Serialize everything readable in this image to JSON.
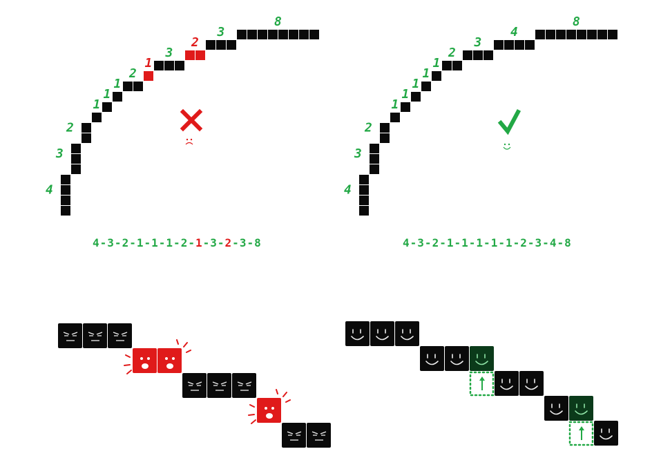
{
  "colors": {
    "good": "#22a845",
    "bad": "#e01a1a",
    "block": "#0a0a0a",
    "good_block": "#0b3a1a",
    "face_line": "#eeeeee"
  },
  "panels": {
    "left": {
      "result_icon": "cross-icon",
      "face_icon": "frown-icon",
      "segment_labels": [
        "4",
        "3",
        "2",
        "1",
        "1",
        "1",
        "2",
        "1",
        "3",
        "2",
        "3",
        "8"
      ],
      "segment_status": [
        "ok",
        "ok",
        "ok",
        "ok",
        "ok",
        "ok",
        "ok",
        "bad",
        "ok",
        "bad",
        "ok",
        "ok"
      ],
      "sequence_tokens": [
        {
          "text": "4",
          "status": "ok"
        },
        {
          "text": "-",
          "status": "ok"
        },
        {
          "text": "3",
          "status": "ok"
        },
        {
          "text": "-",
          "status": "ok"
        },
        {
          "text": "2",
          "status": "ok"
        },
        {
          "text": "-",
          "status": "ok"
        },
        {
          "text": "1",
          "status": "ok"
        },
        {
          "text": "-",
          "status": "ok"
        },
        {
          "text": "1",
          "status": "ok"
        },
        {
          "text": "-",
          "status": "ok"
        },
        {
          "text": "1",
          "status": "ok"
        },
        {
          "text": "-",
          "status": "ok"
        },
        {
          "text": "2",
          "status": "ok"
        },
        {
          "text": "-",
          "status": "ok"
        },
        {
          "text": "1",
          "status": "bad"
        },
        {
          "text": "-",
          "status": "ok"
        },
        {
          "text": "3",
          "status": "ok"
        },
        {
          "text": "-",
          "status": "ok"
        },
        {
          "text": "2",
          "status": "bad"
        },
        {
          "text": "-",
          "status": "ok"
        },
        {
          "text": "3",
          "status": "ok"
        },
        {
          "text": "-",
          "status": "ok"
        },
        {
          "text": "8",
          "status": "ok"
        }
      ]
    },
    "right": {
      "result_icon": "checkmark-icon",
      "face_icon": "smile-icon",
      "segment_labels": [
        "4",
        "3",
        "2",
        "1",
        "1",
        "1",
        "1",
        "1",
        "2",
        "3",
        "4",
        "8"
      ],
      "segment_status": [
        "ok",
        "ok",
        "ok",
        "ok",
        "ok",
        "ok",
        "ok",
        "ok",
        "ok",
        "ok",
        "ok",
        "ok"
      ],
      "sequence_tokens": [
        {
          "text": "4",
          "status": "ok"
        },
        {
          "text": "-",
          "status": "ok"
        },
        {
          "text": "3",
          "status": "ok"
        },
        {
          "text": "-",
          "status": "ok"
        },
        {
          "text": "2",
          "status": "ok"
        },
        {
          "text": "-",
          "status": "ok"
        },
        {
          "text": "1",
          "status": "ok"
        },
        {
          "text": "-",
          "status": "ok"
        },
        {
          "text": "1",
          "status": "ok"
        },
        {
          "text": "-",
          "status": "ok"
        },
        {
          "text": "1",
          "status": "ok"
        },
        {
          "text": "-",
          "status": "ok"
        },
        {
          "text": "1",
          "status": "ok"
        },
        {
          "text": "-",
          "status": "ok"
        },
        {
          "text": "1",
          "status": "ok"
        },
        {
          "text": "-",
          "status": "ok"
        },
        {
          "text": "2",
          "status": "ok"
        },
        {
          "text": "-",
          "status": "ok"
        },
        {
          "text": "3",
          "status": "ok"
        },
        {
          "text": "-",
          "status": "ok"
        },
        {
          "text": "4",
          "status": "ok"
        },
        {
          "text": "-",
          "status": "ok"
        },
        {
          "text": "8",
          "status": "ok"
        }
      ]
    }
  },
  "bottom_left": {
    "step_sizes": [
      3,
      2,
      3,
      1,
      2
    ],
    "step_status": [
      "ok",
      "bad",
      "ok",
      "bad",
      "ok"
    ],
    "face_ok": "grumpy-face-icon",
    "face_bad": "scared-face-icon"
  },
  "bottom_right": {
    "step_sizes": [
      3,
      3,
      2,
      2,
      1
    ],
    "highlighted_blocks": [
      [
        1,
        2
      ],
      [
        3,
        1
      ]
    ],
    "face_icon": "happy-face-icon",
    "arrow_icon": "up-arrow-icon"
  }
}
